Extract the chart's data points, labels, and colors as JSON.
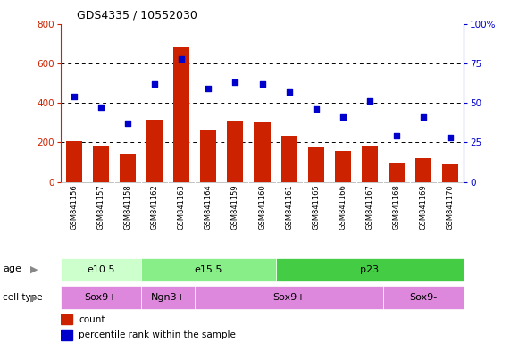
{
  "title": "GDS4335 / 10552030",
  "samples": [
    "GSM841156",
    "GSM841157",
    "GSM841158",
    "GSM841162",
    "GSM841163",
    "GSM841164",
    "GSM841159",
    "GSM841160",
    "GSM841161",
    "GSM841165",
    "GSM841166",
    "GSM841167",
    "GSM841168",
    "GSM841169",
    "GSM841170"
  ],
  "counts": [
    205,
    180,
    143,
    315,
    680,
    260,
    310,
    300,
    235,
    175,
    155,
    185,
    95,
    120,
    90
  ],
  "percentiles": [
    54,
    47,
    37,
    62,
    78,
    59,
    63,
    62,
    57,
    46,
    41,
    51,
    29,
    41,
    28
  ],
  "ylim_left": [
    0,
    800
  ],
  "ylim_right": [
    0,
    100
  ],
  "yticks_left": [
    0,
    200,
    400,
    600,
    800
  ],
  "yticks_right": [
    0,
    25,
    50,
    75,
    100
  ],
  "bar_color": "#cc2200",
  "dot_color": "#0000cc",
  "bg_color": "#ffffff",
  "label_bg": "#cccccc",
  "age_colors": [
    "#ccffcc",
    "#88ee88",
    "#44cc44"
  ],
  "cell_color": "#dd88dd",
  "age_groups": [
    {
      "label": "e10.5",
      "start": 0,
      "end": 3
    },
    {
      "label": "e15.5",
      "start": 3,
      "end": 8
    },
    {
      "label": "p23",
      "start": 8,
      "end": 15
    }
  ],
  "cell_groups": [
    {
      "label": "Sox9+",
      "start": 0,
      "end": 3
    },
    {
      "label": "Ngn3+",
      "start": 3,
      "end": 5
    },
    {
      "label": "Sox9+",
      "start": 5,
      "end": 12
    },
    {
      "label": "Sox9-",
      "start": 12,
      "end": 15
    }
  ]
}
